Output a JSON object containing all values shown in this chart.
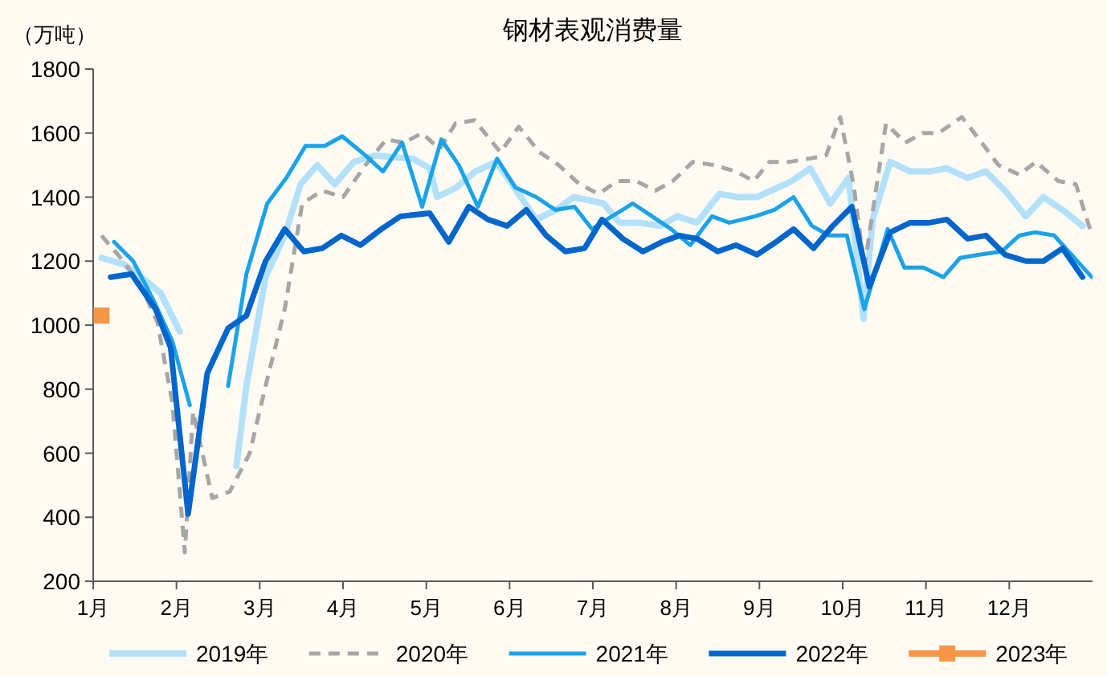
{
  "chart_data": {
    "type": "line",
    "title": "钢材表观消费量",
    "ylabel": "（万吨）",
    "xlim": [
      1,
      13
    ],
    "ylim": [
      200,
      1800
    ],
    "xticks": [
      {
        "value": 1,
        "label": "1月"
      },
      {
        "value": 2,
        "label": "2月"
      },
      {
        "value": 3,
        "label": "3月"
      },
      {
        "value": 4,
        "label": "4月"
      },
      {
        "value": 5,
        "label": "5月"
      },
      {
        "value": 6,
        "label": "6月"
      },
      {
        "value": 7,
        "label": "7月"
      },
      {
        "value": 8,
        "label": "8月"
      },
      {
        "value": 9,
        "label": "9月"
      },
      {
        "value": 10,
        "label": "10月"
      },
      {
        "value": 11,
        "label": "11月"
      },
      {
        "value": 12,
        "label": "12月"
      }
    ],
    "yticks": [
      200,
      400,
      600,
      800,
      1000,
      1200,
      1400,
      1600,
      1800
    ],
    "grid": false,
    "legend": "bottom",
    "series": [
      {
        "name": "2019年",
        "color": "#b4e1fa",
        "x": [
          1.1,
          1.37,
          1.58,
          1.81,
          2.04,
          2.49,
          2.72,
          2.84,
          3.07,
          3.3,
          3.49,
          3.69,
          3.9,
          4.13,
          4.38,
          4.84,
          5.04,
          5.13,
          5.36,
          5.59,
          5.84,
          6.03,
          6.32,
          6.56,
          6.77,
          7.13,
          7.32,
          7.56,
          7.81,
          8.01,
          8.25,
          8.52,
          8.74,
          8.97,
          9.39,
          9.61,
          9.85,
          10.07,
          10.25,
          10.36,
          10.57,
          10.81,
          11.04,
          11.25,
          11.5,
          11.72,
          11.95,
          12.2,
          12.41,
          12.64,
          12.88
        ],
        "values": [
          1210,
          1190,
          1150,
          1100,
          980,
          null,
          560,
          810,
          1150,
          1280,
          1440,
          1500,
          1440,
          1510,
          1530,
          1520,
          1490,
          1400,
          1430,
          1480,
          1510,
          1440,
          1330,
          1360,
          1400,
          1380,
          1320,
          1320,
          1310,
          1340,
          1320,
          1410,
          1400,
          1400,
          1450,
          1490,
          1380,
          1460,
          1020,
          1330,
          1510,
          1480,
          1480,
          1490,
          1460,
          1480,
          1420,
          1340,
          1400,
          1360,
          1310
        ]
      },
      {
        "name": "2020年",
        "color": "#a6a6a6",
        "line_style": "dashed",
        "x": [
          1.1,
          1.33,
          1.56,
          1.77,
          1.95,
          2.1,
          2.2,
          2.43,
          2.64,
          2.88,
          3.07,
          3.3,
          3.51,
          3.75,
          4.0,
          4.27,
          4.52,
          4.73,
          4.95,
          5.16,
          5.35,
          5.58,
          5.89,
          6.11,
          6.36,
          6.59,
          6.84,
          7.07,
          7.29,
          7.52,
          7.75,
          7.96,
          8.2,
          8.45,
          8.72,
          8.93,
          9.12,
          9.36,
          9.59,
          9.8,
          9.97,
          10.13,
          10.26,
          10.52,
          10.75,
          10.96,
          11.15,
          11.43,
          11.64,
          11.87,
          12.12,
          12.32,
          12.59,
          12.8,
          12.97
        ],
        "values": [
          1280,
          1210,
          1130,
          1010,
          760,
          290,
          730,
          460,
          480,
          600,
          810,
          1050,
          1380,
          1420,
          1400,
          1500,
          1580,
          1570,
          1600,
          1550,
          1630,
          1640,
          1540,
          1620,
          1540,
          1500,
          1440,
          1410,
          1450,
          1450,
          1420,
          1450,
          1510,
          1500,
          1480,
          1450,
          1510,
          1510,
          1520,
          1530,
          1650,
          1440,
          1180,
          1630,
          1570,
          1600,
          1600,
          1650,
          1580,
          1500,
          1470,
          1510,
          1450,
          1440,
          1300
        ]
      },
      {
        "name": "2021年",
        "color": "#1aa3e8",
        "x": [
          1.25,
          1.48,
          1.72,
          1.95,
          2.16,
          2.51,
          2.62,
          2.84,
          3.09,
          3.32,
          3.55,
          3.78,
          3.99,
          4.27,
          4.48,
          4.71,
          4.95,
          5.18,
          5.39,
          5.62,
          5.85,
          6.07,
          6.32,
          6.55,
          6.78,
          6.99,
          7.23,
          7.48,
          7.71,
          7.94,
          8.17,
          8.43,
          8.64,
          8.95,
          9.18,
          9.41,
          9.63,
          9.84,
          10.05,
          10.26,
          10.54,
          10.74,
          10.97,
          11.21,
          11.41,
          11.64,
          11.91,
          12.12,
          12.31,
          12.54,
          12.99
        ],
        "values": [
          1260,
          1200,
          1080,
          950,
          750,
          null,
          810,
          1160,
          1380,
          1460,
          1560,
          1560,
          1590,
          1530,
          1480,
          1570,
          1370,
          1580,
          1500,
          1370,
          1520,
          1430,
          1400,
          1360,
          1370,
          1300,
          1340,
          1380,
          1340,
          1300,
          1250,
          1340,
          1320,
          1340,
          1360,
          1400,
          1310,
          1280,
          1280,
          1050,
          1300,
          1180,
          1180,
          1150,
          1210,
          1220,
          1230,
          1280,
          1290,
          1280,
          1150
        ]
      },
      {
        "name": "2022年",
        "color": "#0066cc",
        "x": [
          1.21,
          1.46,
          1.75,
          1.93,
          2.14,
          2.37,
          2.62,
          2.84,
          3.07,
          3.3,
          3.53,
          3.75,
          3.98,
          4.21,
          4.46,
          4.69,
          5.04,
          5.27,
          5.51,
          5.74,
          5.97,
          6.2,
          6.44,
          6.67,
          6.9,
          7.11,
          7.36,
          7.6,
          7.83,
          8.04,
          8.25,
          8.5,
          8.72,
          8.97,
          9.2,
          9.41,
          9.65,
          9.88,
          10.11,
          10.32,
          10.57,
          10.81,
          11.04,
          11.25,
          11.5,
          11.72,
          11.95,
          12.2,
          12.41,
          12.64,
          12.88
        ],
        "values": [
          1150,
          1160,
          1050,
          930,
          410,
          850,
          990,
          1030,
          1200,
          1300,
          1230,
          1240,
          1280,
          1250,
          1300,
          1340,
          1350,
          1260,
          1370,
          1330,
          1310,
          1360,
          1280,
          1230,
          1240,
          1330,
          1270,
          1230,
          1260,
          1280,
          1270,
          1230,
          1250,
          1220,
          1260,
          1300,
          1240,
          1310,
          1370,
          1120,
          1290,
          1320,
          1320,
          1330,
          1270,
          1280,
          1220,
          1200,
          1200,
          1240,
          1150
        ]
      },
      {
        "name": "2023年",
        "color": "#f79646",
        "marker": "square",
        "x": [
          1.1
        ],
        "values": [
          1030
        ]
      }
    ]
  }
}
